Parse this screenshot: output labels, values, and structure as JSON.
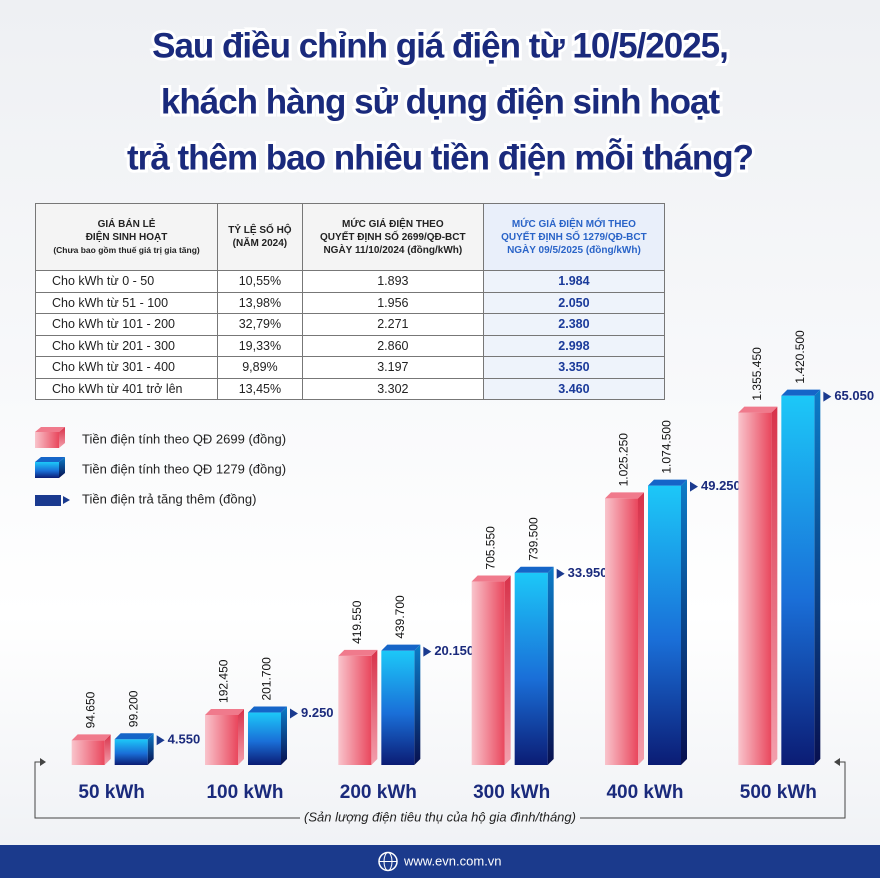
{
  "title": [
    "Sau điều chỉnh giá điện từ 10/5/2025,",
    "khách hàng sử dụng điện sinh hoạt",
    "trả thêm bao nhiêu tiền điện mỗi tháng?"
  ],
  "table": {
    "headers": [
      [
        "GIÁ BÁN LẺ",
        "ĐIỆN SINH HOẠT",
        "(Chưa bao gồm thuế giá trị gia tăng)"
      ],
      [
        "TỶ LỆ SỐ HỘ",
        "(NĂM 2024)"
      ],
      [
        "MỨC GIÁ ĐIỆN THEO",
        "QUYẾT ĐỊNH SỐ 2699/QĐ-BCT",
        "NGÀY 11/10/2024 (đồng/kWh)"
      ],
      [
        "MỨC GIÁ ĐIỆN MỚI THEO",
        "QUYẾT ĐỊNH SỐ 1279/QĐ-BCT",
        "NGÀY 09/5/2025 (đồng/kWh)"
      ]
    ],
    "rows": [
      [
        "Cho kWh từ 0 - 50",
        "10,55%",
        "1.893",
        "1.984"
      ],
      [
        "Cho kWh từ  51 - 100",
        "13,98%",
        "1.956",
        "2.050"
      ],
      [
        "Cho kWh từ 101 - 200",
        "32,79%",
        "2.271",
        "2.380"
      ],
      [
        "Cho kWh từ 201 - 300",
        "19,33%",
        "2.860",
        "2.998"
      ],
      [
        "Cho kWh từ 301 - 400",
        "9,89%",
        "3.197",
        "3.350"
      ],
      [
        "Cho kWh từ 401 trở lên",
        "13,45%",
        "3.302",
        "3.460"
      ]
    ]
  },
  "chart_data": {
    "type": "bar",
    "categories": [
      "50 kWh",
      "100 kWh",
      "200 kWh",
      "300 kWh",
      "400 kWh",
      "500 kWh"
    ],
    "xlabel": "(Sản lượng điện tiêu thụ của hộ gia đình/tháng)",
    "ylim": [
      0,
      1500000
    ],
    "series": [
      {
        "name": "Tiền điện tính theo QĐ 2699 (đồng)",
        "color": "#e8435a",
        "values": [
          94650,
          192450,
          419550,
          705550,
          1025250,
          1355450
        ],
        "value_labels": [
          "94.650",
          "192.450",
          "419.550",
          "705.550",
          "1.025.250",
          "1.355.450"
        ]
      },
      {
        "name": "Tiền điện tính theo QĐ 1279 (đồng)",
        "color": "#1fa3e8",
        "values": [
          99200,
          201700,
          439700,
          739500,
          1074500,
          1420500
        ],
        "value_labels": [
          "99.200",
          "201.700",
          "439.700",
          "739.500",
          "1.074.500",
          "1.420.500"
        ]
      },
      {
        "name": "Tiền điện trả tăng thêm (đồng)",
        "color": "#1a3a8f",
        "values": [
          4550,
          9250,
          20150,
          33950,
          49250,
          65050
        ],
        "value_labels": [
          "4.550",
          "9.250",
          "20.150",
          "33.950",
          "49.250",
          "65.050"
        ]
      }
    ]
  },
  "footer": "www.evn.com.vn"
}
